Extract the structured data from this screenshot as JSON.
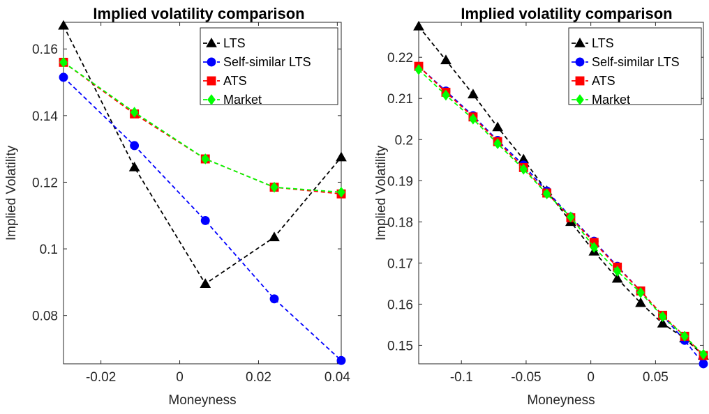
{
  "chart_data": [
    {
      "type": "line",
      "title": "Implied volatility comparison",
      "xlabel": "Moneyness",
      "ylabel": "Implied Volatility",
      "xlim": [
        -0.0295,
        0.041
      ],
      "ylim": [
        0.0655,
        0.168
      ],
      "xticks": [
        -0.02,
        0,
        0.02,
        0.04
      ],
      "xtick_labels": [
        "-0.02",
        "0",
        "0.02",
        "0.04"
      ],
      "yticks": [
        0.08,
        0.1,
        0.12,
        0.14,
        0.16
      ],
      "ytick_labels": [
        "0.08",
        "0.1",
        "0.12",
        "0.14",
        "0.16"
      ],
      "legend_position": "top-right",
      "grid": false,
      "x": [
        -0.0295,
        -0.0115,
        0.0065,
        0.024,
        0.041
      ],
      "series": [
        {
          "name": "LTS",
          "color": "#000000",
          "marker": "triangle",
          "values": [
            0.167,
            0.1245,
            0.0895,
            0.1035,
            0.1275
          ]
        },
        {
          "name": "Self-similar LTS",
          "color": "#0000ff",
          "marker": "circle",
          "values": [
            0.1515,
            0.131,
            0.1085,
            0.085,
            0.0665
          ]
        },
        {
          "name": "ATS",
          "color": "#ff0000",
          "marker": "square",
          "values": [
            0.156,
            0.1405,
            0.127,
            0.1185,
            0.1165
          ]
        },
        {
          "name": "Market",
          "color": "#00ff00",
          "marker": "diamond",
          "values": [
            0.156,
            0.141,
            0.127,
            0.1185,
            0.117
          ]
        }
      ]
    },
    {
      "type": "line",
      "title": "Implied volatility comparison",
      "xlabel": "Moneyness",
      "ylabel": "Implied Volatility",
      "xlim": [
        -0.133,
        0.087
      ],
      "ylim": [
        0.1455,
        0.2285
      ],
      "xticks": [
        -0.1,
        -0.05,
        0,
        0.05
      ],
      "xtick_labels": [
        "-0.1",
        "-0.05",
        "0",
        "0.05"
      ],
      "yticks": [
        0.15,
        0.16,
        0.17,
        0.18,
        0.19,
        0.2,
        0.21,
        0.22
      ],
      "ytick_labels": [
        "0.15",
        "0.16",
        "0.17",
        "0.18",
        "0.19",
        "0.2",
        "0.21",
        "0.22"
      ],
      "legend_position": "top-right",
      "grid": false,
      "x": [
        -0.133,
        -0.112,
        -0.091,
        -0.072,
        -0.052,
        -0.034,
        -0.0155,
        0.0025,
        0.0205,
        0.0385,
        0.0555,
        0.0725,
        0.087
      ],
      "series": [
        {
          "name": "LTS",
          "color": "#000000",
          "marker": "triangle",
          "values": [
            0.2275,
            0.2193,
            0.211,
            0.203,
            0.1952,
            0.1875,
            0.18,
            0.1728,
            0.1662,
            0.1603,
            0.1553,
            0.1517,
            0.1475
          ]
        },
        {
          "name": "Self-similar LTS",
          "color": "#0000ff",
          "marker": "circle",
          "values": [
            0.2178,
            0.2118,
            0.2058,
            0.1998,
            0.1938,
            0.1875,
            0.1812,
            0.1753,
            0.1692,
            0.1632,
            0.1572,
            0.1512,
            0.1455
          ]
        },
        {
          "name": "ATS",
          "color": "#ff0000",
          "marker": "square",
          "values": [
            0.2178,
            0.2115,
            0.2055,
            0.1995,
            0.1932,
            0.187,
            0.181,
            0.175,
            0.169,
            0.1632,
            0.1573,
            0.1522,
            0.1475
          ]
        },
        {
          "name": "Market",
          "color": "#00ff00",
          "marker": "diamond",
          "values": [
            0.217,
            0.2108,
            0.205,
            0.199,
            0.1928,
            0.1868,
            0.1812,
            0.1738,
            0.168,
            0.1628,
            0.157,
            0.1522,
            0.1478
          ]
        }
      ]
    }
  ]
}
